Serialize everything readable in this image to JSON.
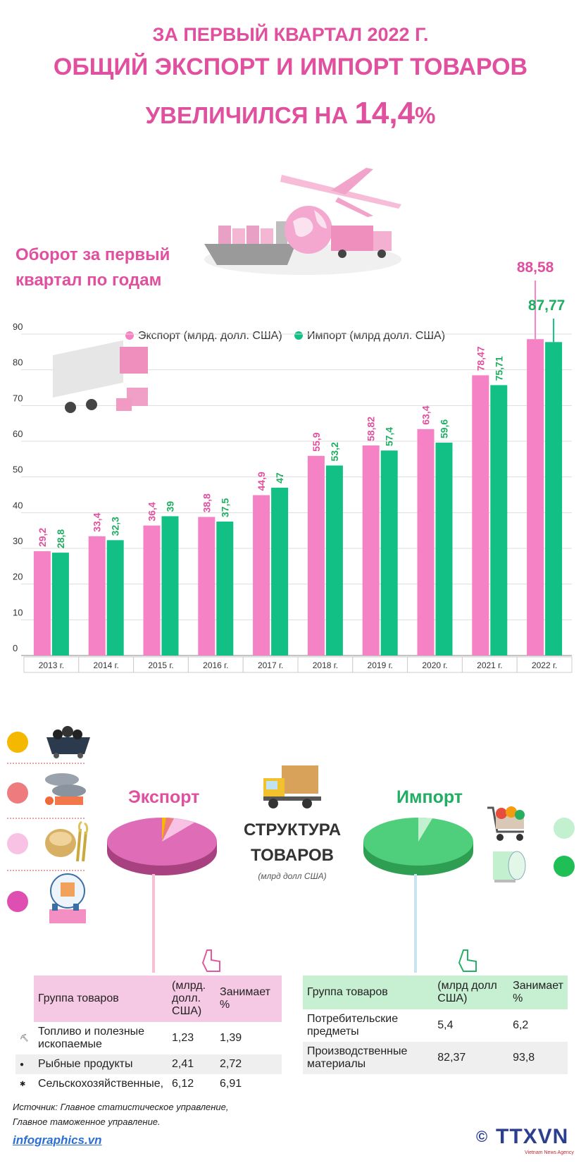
{
  "header": {
    "line1": "ЗА ПЕРВЫЙ КВАРТАЛ 2022 Г.",
    "line2": "ОБЩИЙ ЭКСПОРТ И ИМПОРТ ТОВАРОВ",
    "line3_text": "УВЕЛИЧИЛСЯ НА ",
    "line3_value": "14,4",
    "line3_unit": "%"
  },
  "subtitle": "Оборот за первый квартал по годам",
  "colors": {
    "export": "#f582c4",
    "import": "#12c085",
    "export_text": "#e0509f",
    "import_text": "#1fae62"
  },
  "chart_data": {
    "type": "bar",
    "title": "Оборот за первый квартал по годам",
    "categories": [
      "2013 г.",
      "2014 г.",
      "2015 г.",
      "2016 г.",
      "2017 г.",
      "2018 г.",
      "2019 г.",
      "2020 г.",
      "2021 г.",
      "2022 г."
    ],
    "series": [
      {
        "name": "Экспорт (млрд. долл. США)",
        "values": [
          29.2,
          33.4,
          36.4,
          38.8,
          44.9,
          55.9,
          58.82,
          63.4,
          78.47,
          88.58
        ],
        "labels": [
          "29,2",
          "33,4",
          "36,4",
          "38,8",
          "44,9",
          "55,9",
          "58,82",
          "63,4",
          "78,47",
          "88,58"
        ]
      },
      {
        "name": "Импорт (млрд долл. США)",
        "values": [
          28.8,
          32.3,
          39,
          37.5,
          47,
          53.2,
          57.4,
          59.6,
          75.71,
          87.77
        ],
        "labels": [
          "28,8",
          "32,3",
          "39",
          "37,5",
          "47",
          "53,2",
          "57,4",
          "59,6",
          "75,71",
          "87,77"
        ]
      }
    ],
    "yticks": [
      "0",
      "10",
      "20",
      "30",
      "40",
      "50",
      "60",
      "70",
      "80",
      "90"
    ],
    "ylim": [
      0,
      90
    ],
    "grid": true,
    "legend": "top"
  },
  "structure": {
    "export_title": "Экспорт",
    "import_title": "Импорт",
    "title_line1": "СТРУКТУРА",
    "title_line2": "ТОВАРОВ",
    "unit": "(млрд долл США)"
  },
  "export_table": {
    "headers": [
      "Группа товаров",
      "(млрд. долл. США)",
      "Занимает %"
    ],
    "rows": [
      {
        "name": "Топливо и полезные ископаемые",
        "value": "1,23",
        "share": "1,39",
        "icon": "coal-icon"
      },
      {
        "name": "Рыбные продукты",
        "value": "2,41",
        "share": "2,72",
        "icon": "fish-icon"
      },
      {
        "name": "Сельскохозяйственные,",
        "value": "6,12",
        "share": "6,91",
        "icon": "wheat-icon"
      }
    ]
  },
  "import_table": {
    "headers": [
      "Группа товаров",
      "(млрд долл США)",
      "Занимает %"
    ],
    "rows": [
      {
        "name": "Потребительские предметы",
        "value": "5,4",
        "share": "6,2"
      },
      {
        "name": "Производственные материалы",
        "value": "82,37",
        "share": "93,8"
      }
    ]
  },
  "footer": {
    "source_line1": "Источник: Главное статистическое управление,",
    "source_line2": "Главное таможенное управление.",
    "site": "infographics.vn",
    "copyright": "©",
    "brand": "TTXVN",
    "brand_sub": "Vietnam News Agency"
  }
}
